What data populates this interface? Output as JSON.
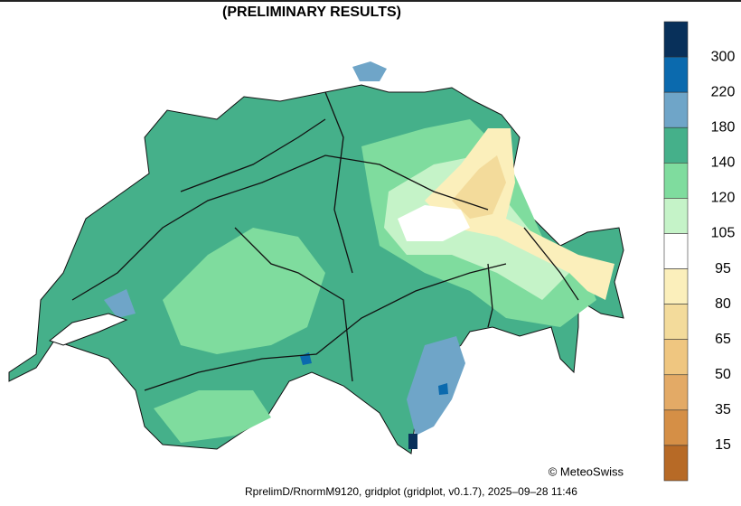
{
  "header": {
    "title": "(PRELIMINARY RESULTS)"
  },
  "colorbar": {
    "levels": [
      300,
      220,
      180,
      140,
      120,
      105,
      95,
      80,
      65,
      50,
      35,
      15
    ],
    "colors": [
      "#08305a",
      "#0b6aae",
      "#6fa5c8",
      "#45b08a",
      "#7fdc9e",
      "#c5f3c8",
      "#ffffff",
      "#fbefbb",
      "#f3db9b",
      "#efc680",
      "#e3aa66",
      "#d58f46",
      "#b76a26"
    ]
  },
  "credit": "© MeteoSwiss",
  "footer": "RprelimD/RnormM9120, gridplot (gridplot, v0.1.7), 2025–09–28 11:46"
}
